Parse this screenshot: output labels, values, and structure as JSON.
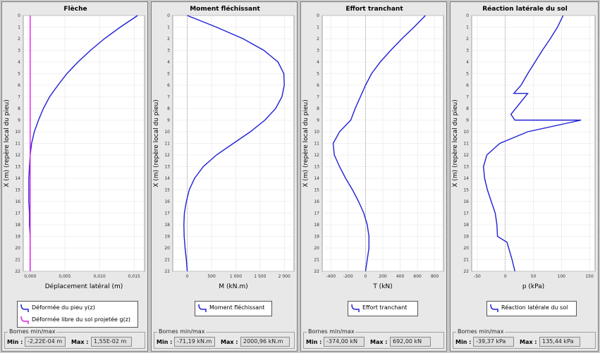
{
  "panels": [
    {
      "id": "fleche",
      "title": "Flèche",
      "xlabel": "Déplacement latéral (m)",
      "ylabel": "X (m) (repère local du pieu)",
      "legend": [
        {
          "label": "Déformée du pieu y(z)",
          "color": "#1f1fd6"
        },
        {
          "label": "Déformée libre du sol projetée g(z)",
          "color": "#e020e0"
        }
      ],
      "bornes_title": "Bornes min/max",
      "min_label": "Min :",
      "min_value": "-2,22E-04 m",
      "max_label": "Max :",
      "max_value": "1,55E-02 m"
    },
    {
      "id": "moment",
      "title": "Moment fléchissant",
      "xlabel": "M (kN.m)",
      "ylabel": "X (m) (repère local du pieu)",
      "legend": [
        {
          "label": "Moment fléchissant",
          "color": "#1f1fd6"
        }
      ],
      "bornes_title": "Bornes min/max",
      "min_label": "Min :",
      "min_value": "-71,19 kN.m",
      "max_label": "Max :",
      "max_value": "2000,96 kN.m"
    },
    {
      "id": "effort",
      "title": "Effort tranchant",
      "xlabel": "T (kN)",
      "ylabel": "X (m) (repère local du pieu)",
      "legend": [
        {
          "label": "Effort tranchant",
          "color": "#1f1fd6"
        }
      ],
      "bornes_title": "Bornes min/max",
      "min_label": "Min :",
      "min_value": "-374,00 kN",
      "max_label": "Max :",
      "max_value": "692,00 kN"
    },
    {
      "id": "reaction",
      "title": "Réaction latérale du sol",
      "xlabel": "p (kPa)",
      "ylabel": "X (m) (repère local du pieu)",
      "legend": [
        {
          "label": "Réaction latérale du sol",
          "color": "#1f1fd6"
        }
      ],
      "bornes_title": "Bornes min/max",
      "min_label": "Min :",
      "min_value": "-39,37 kPa",
      "max_label": "Max :",
      "max_value": "135,44 kPa"
    }
  ],
  "chart_data": [
    {
      "type": "line",
      "title": "Flèche",
      "xlabel": "Déplacement latéral (m)",
      "ylabel": "X (m) (repère local du pieu)",
      "xlim": [
        -0.001,
        0.0165
      ],
      "ylim": [
        0,
        22
      ],
      "y_inverted": true,
      "x_ticks": [
        0,
        0.005,
        0.01,
        0.015
      ],
      "x_tick_labels": [
        "0,000",
        "0,005",
        "0,010",
        "0,015"
      ],
      "y_ticks": [
        0,
        1,
        2,
        3,
        4,
        5,
        6,
        7,
        8,
        9,
        10,
        11,
        12,
        13,
        14,
        15,
        16,
        17,
        18,
        19,
        20,
        21,
        22
      ],
      "zero_line": false,
      "series": [
        {
          "name": "Déformée du pieu y(z)",
          "color": "#1f1fd6",
          "x": [
            0.0155,
            0.013,
            0.0107,
            0.0087,
            0.0069,
            0.0053,
            0.004,
            0.0028,
            0.0019,
            0.0012,
            0.0006,
            0.0002,
            0.0,
            -0.0001,
            -0.0002,
            -0.0002,
            -0.0002,
            -0.0001,
            -0.0001,
            0.0,
            0.0,
            0.0,
            0.0
          ],
          "y": [
            0,
            1,
            2,
            3,
            4,
            5,
            6,
            7,
            8,
            9,
            10,
            11,
            12,
            13,
            14,
            15,
            16,
            17,
            18,
            19,
            20,
            21,
            22
          ]
        },
        {
          "name": "Déformée libre du sol projetée g(z)",
          "color": "#e020e0",
          "x": [
            0,
            0
          ],
          "y": [
            0,
            22
          ]
        }
      ]
    },
    {
      "type": "line",
      "title": "Moment fléchissant",
      "xlabel": "M (kN.m)",
      "ylabel": "X (m) (repère local du pieu)",
      "xlim": [
        -300,
        2200
      ],
      "ylim": [
        0,
        22
      ],
      "y_inverted": true,
      "x_ticks": [
        0,
        500,
        1000,
        1500,
        2000
      ],
      "x_tick_labels": [
        "0",
        "500",
        "1 000",
        "1 500",
        "2 000"
      ],
      "y_ticks": [
        0,
        1,
        2,
        3,
        4,
        5,
        6,
        7,
        8,
        9,
        10,
        11,
        12,
        13,
        14,
        15,
        16,
        17,
        18,
        19,
        20,
        21,
        22
      ],
      "zero_line": true,
      "series": [
        {
          "name": "Moment fléchissant",
          "color": "#1f1fd6",
          "x": [
            0,
            600,
            1150,
            1580,
            1870,
            1990,
            2000,
            1950,
            1820,
            1600,
            1300,
            950,
            600,
            330,
            150,
            40,
            -20,
            -60,
            -71,
            -65,
            -45,
            -20,
            0
          ],
          "y": [
            0,
            1,
            2,
            3,
            4,
            5,
            6,
            7,
            8,
            9,
            10,
            11,
            12,
            13,
            14,
            15,
            16,
            17,
            18,
            19,
            20,
            21,
            22
          ]
        }
      ]
    },
    {
      "type": "line",
      "title": "Effort tranchant",
      "xlabel": "T (kN)",
      "ylabel": "X (m) (repère local du pieu)",
      "xlim": [
        -500,
        900
      ],
      "ylim": [
        0,
        22
      ],
      "y_inverted": true,
      "x_ticks": [
        -400,
        -200,
        0,
        200,
        400,
        600,
        800
      ],
      "x_tick_labels": [
        "-400",
        "-200",
        "0",
        "200",
        "400",
        "600",
        "800"
      ],
      "y_ticks": [
        0,
        1,
        2,
        3,
        4,
        5,
        6,
        7,
        8,
        9,
        10,
        11,
        12,
        13,
        14,
        15,
        16,
        17,
        18,
        19,
        20,
        21,
        22
      ],
      "zero_line": true,
      "series": [
        {
          "name": "Effort tranchant",
          "color": "#1f1fd6",
          "x": [
            692,
            560,
            420,
            290,
            170,
            70,
            0,
            -60,
            -120,
            -170,
            -300,
            -374,
            -360,
            -300,
            -230,
            -150,
            -80,
            -20,
            20,
            40,
            40,
            20,
            0
          ],
          "y": [
            0,
            1,
            2,
            3,
            4,
            5,
            6,
            7,
            8,
            9,
            10,
            11,
            12,
            13,
            14,
            15,
            16,
            17,
            18,
            19,
            20,
            21,
            22
          ]
        }
      ]
    },
    {
      "type": "line",
      "title": "Réaction latérale du sol",
      "xlabel": "p (kPa)",
      "ylabel": "X (m) (repère local du pieu)",
      "xlim": [
        -60,
        160
      ],
      "ylim": [
        0,
        22
      ],
      "y_inverted": true,
      "x_ticks": [
        -50,
        0,
        50,
        100,
        150
      ],
      "x_tick_labels": [
        "-50",
        "0",
        "50",
        "100",
        "150"
      ],
      "y_ticks": [
        0,
        1,
        2,
        3,
        4,
        5,
        6,
        7,
        8,
        9,
        10,
        11,
        12,
        13,
        14,
        15,
        16,
        17,
        18,
        19,
        20,
        21,
        22
      ],
      "zero_line": true,
      "series": [
        {
          "name": "Réaction latérale du sol",
          "color": "#1f1fd6",
          "x": [
            103,
            93,
            80,
            66,
            53,
            40,
            28,
            15,
            40,
            10,
            17,
            135,
            40,
            -10,
            -33,
            -39,
            -37,
            -32,
            -25,
            -18,
            -15,
            -14,
            3,
            12,
            17
          ],
          "y": [
            0,
            1,
            2,
            3,
            4,
            5,
            6,
            6.7,
            6.7,
            8.5,
            9,
            9,
            10,
            11,
            12,
            13,
            14,
            15,
            16,
            17,
            18,
            19,
            19.5,
            21,
            22
          ]
        }
      ]
    }
  ]
}
